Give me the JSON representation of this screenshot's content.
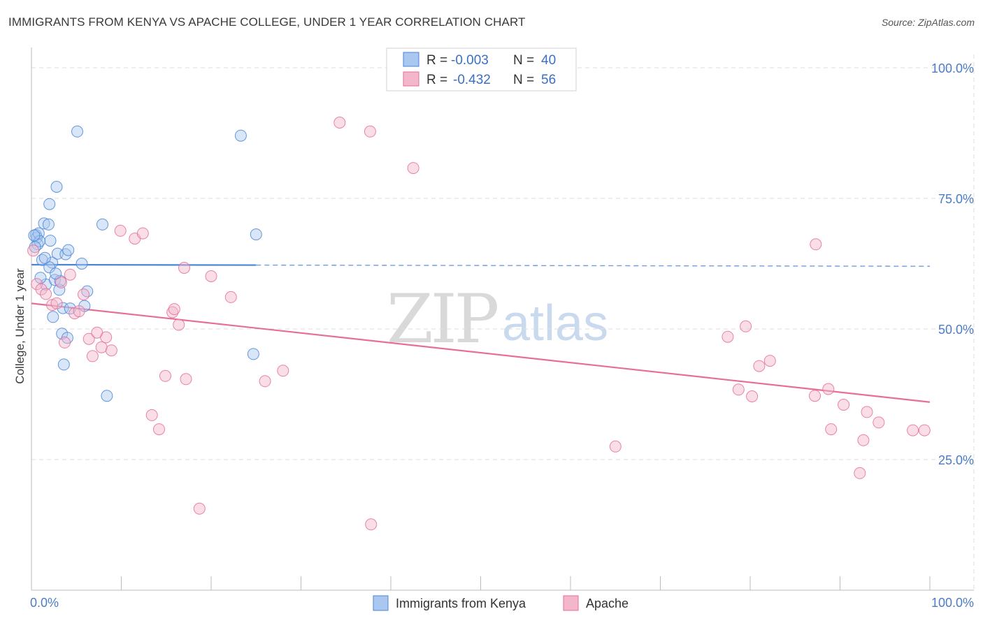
{
  "header": {
    "title": "IMMIGRANTS FROM KENYA VS APACHE COLLEGE, UNDER 1 YEAR CORRELATION CHART",
    "source": "Source: ZipAtlas.com"
  },
  "watermark": {
    "zip": "ZIP",
    "atlas": "atlas"
  },
  "legend_box": {
    "rows": [
      {
        "r_label": "R =",
        "r_value": "-0.003",
        "n_label": "N =",
        "n_value": "40"
      },
      {
        "r_label": "R =",
        "r_value": "-0.432",
        "n_label": "N =",
        "n_value": "56"
      }
    ]
  },
  "colors": {
    "blue": "#4a86d8",
    "blue_fill": "#aac8ef",
    "pink": "#e56f98",
    "pink_fill": "#f4b6ca",
    "grid": "#dedede",
    "axis": "#bbbbbb"
  },
  "chart_data": {
    "type": "scatter",
    "title": "IMMIGRANTS FROM KENYA VS APACHE COLLEGE, UNDER 1 YEAR CORRELATION CHART",
    "xlabel": "",
    "ylabel": "College, Under 1 year",
    "xlim": [
      0,
      100
    ],
    "ylim": [
      0,
      105
    ],
    "x_tick_labels": [
      "0.0%",
      "100.0%"
    ],
    "y_ticks": [
      25,
      50,
      75,
      100
    ],
    "y_tick_labels": [
      "25.0%",
      "50.0%",
      "75.0%",
      "100.0%"
    ],
    "grid": true,
    "legend": [
      "Immigrants from Kenya",
      "Apache"
    ],
    "series": [
      {
        "name": "Immigrants from Kenya",
        "color": "#4a86d8",
        "trend": {
          "x0": 0,
          "y0": 62.3,
          "x1": 100,
          "y1": 62.0,
          "solid_until_x": 25
        },
        "points": [
          [
            0.5,
            68
          ],
          [
            0.6,
            67.5
          ],
          [
            0.8,
            68.3
          ],
          [
            0.7,
            66.2
          ],
          [
            0.9,
            66.8
          ],
          [
            1.2,
            63.2
          ],
          [
            1.4,
            70.2
          ],
          [
            1.6,
            58.5
          ],
          [
            1.9,
            70
          ],
          [
            2.0,
            73.9
          ],
          [
            2.1,
            66.9
          ],
          [
            2.3,
            62.7
          ],
          [
            2.4,
            52.3
          ],
          [
            2.6,
            59.4
          ],
          [
            2.8,
            77.2
          ],
          [
            2.9,
            64.4
          ],
          [
            3.1,
            57.5
          ],
          [
            3.2,
            59.2
          ],
          [
            3.4,
            49.1
          ],
          [
            3.5,
            54
          ],
          [
            3.6,
            43.2
          ],
          [
            3.8,
            64.3
          ],
          [
            4.0,
            48.3
          ],
          [
            4.1,
            65.1
          ],
          [
            4.3,
            53.9
          ],
          [
            5.1,
            87.8
          ],
          [
            5.6,
            62.5
          ],
          [
            5.9,
            54.4
          ],
          [
            6.2,
            57.2
          ],
          [
            7.9,
            70
          ],
          [
            8.4,
            37.2
          ],
          [
            23.3,
            87
          ],
          [
            24.7,
            45.2
          ],
          [
            25.0,
            68.1
          ],
          [
            1.0,
            59.8
          ],
          [
            2.0,
            61.8
          ],
          [
            1.5,
            63.6
          ],
          [
            2.7,
            60.6
          ],
          [
            0.4,
            65.7
          ],
          [
            0.3,
            67.9
          ]
        ]
      },
      {
        "name": "Apache",
        "color": "#e56f98",
        "trend": {
          "x0": 0,
          "y0": 54.9,
          "x1": 100,
          "y1": 36.0
        },
        "points": [
          [
            0.2,
            65.0
          ],
          [
            0.6,
            58.6
          ],
          [
            1.1,
            57.6
          ],
          [
            1.6,
            56.7
          ],
          [
            2.3,
            54.6
          ],
          [
            2.8,
            54.9
          ],
          [
            3.3,
            58.9
          ],
          [
            3.7,
            47.4
          ],
          [
            4.3,
            60.4
          ],
          [
            4.8,
            53.0
          ],
          [
            5.3,
            53.4
          ],
          [
            5.8,
            56.6
          ],
          [
            6.4,
            48.1
          ],
          [
            6.8,
            44.8
          ],
          [
            7.3,
            49.3
          ],
          [
            7.8,
            46.5
          ],
          [
            8.3,
            48.4
          ],
          [
            8.9,
            45.9
          ],
          [
            9.9,
            68.8
          ],
          [
            11.5,
            67.3
          ],
          [
            12.4,
            68.3
          ],
          [
            13.4,
            33.5
          ],
          [
            14.2,
            30.8
          ],
          [
            14.9,
            41.0
          ],
          [
            15.7,
            53.2
          ],
          [
            15.9,
            53.8
          ],
          [
            16.4,
            50.8
          ],
          [
            17.0,
            61.7
          ],
          [
            17.2,
            40.4
          ],
          [
            18.7,
            15.6
          ],
          [
            20.0,
            60.1
          ],
          [
            22.2,
            56.1
          ],
          [
            26.0,
            40.0
          ],
          [
            28.0,
            42.0
          ],
          [
            34.3,
            89.5
          ],
          [
            37.7,
            87.8
          ],
          [
            37.8,
            12.6
          ],
          [
            42.5,
            80.8
          ],
          [
            65.0,
            27.5
          ],
          [
            77.5,
            48.5
          ],
          [
            78.7,
            38.4
          ],
          [
            79.5,
            50.5
          ],
          [
            80.2,
            37.1
          ],
          [
            81.0,
            42.9
          ],
          [
            82.2,
            43.9
          ],
          [
            87.3,
            66.2
          ],
          [
            87.2,
            37.2
          ],
          [
            88.7,
            38.5
          ],
          [
            89.0,
            30.8
          ],
          [
            90.4,
            35.5
          ],
          [
            92.2,
            22.4
          ],
          [
            92.6,
            28.7
          ],
          [
            93.0,
            34.1
          ],
          [
            94.3,
            32.1
          ],
          [
            98.1,
            30.6
          ],
          [
            99.4,
            30.6
          ]
        ]
      }
    ]
  }
}
